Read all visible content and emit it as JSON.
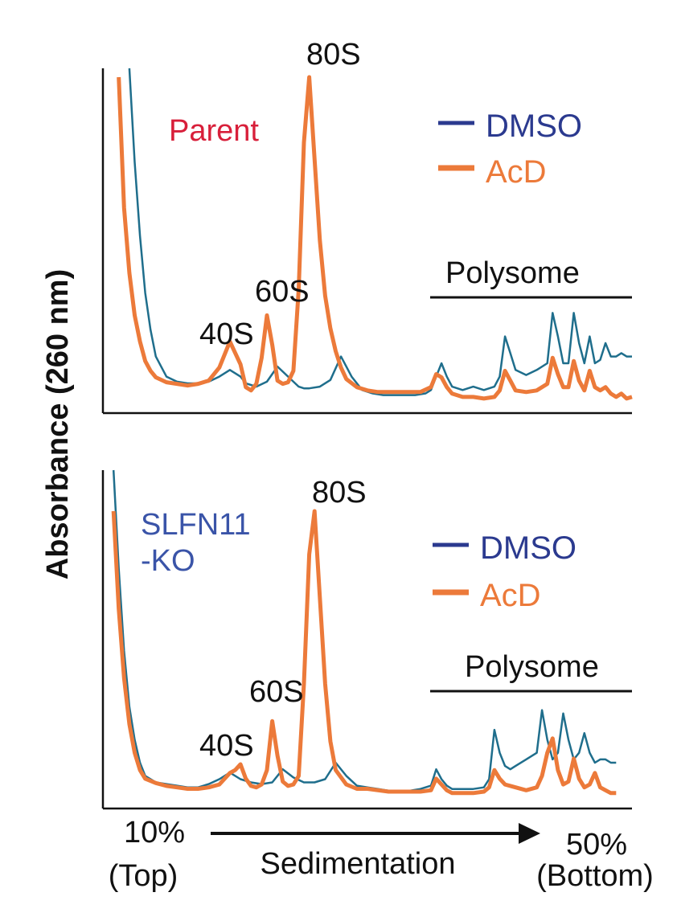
{
  "colors": {
    "dmso": "#1f6e8c",
    "dmso_legend": "#2b3a8f",
    "acd": "#ec7a3a",
    "parent_label": "#d81f3a",
    "ko_label": "#3a54a8",
    "axis": "#111111"
  },
  "ylabel": "Absorbance (260 nm)",
  "xaxis": {
    "left_line1": "10%",
    "left_line2": "(Top)",
    "center": "Sedimentation",
    "right_line1": "50%",
    "right_line2": "(Bottom)"
  },
  "chart_data": [
    {
      "type": "line",
      "panel_label": "Parent",
      "legend": {
        "placement": "top-right",
        "entries": [
          "DMSO",
          "AcD"
        ]
      },
      "peak_labels": [
        "40S",
        "60S",
        "80S"
      ],
      "bracket_label": "Polysome",
      "xlim": [
        0,
        1
      ],
      "ylim": [
        0,
        1
      ],
      "grid": false,
      "series": [
        {
          "name": "DMSO",
          "color": "#1f6e8c",
          "x": [
            0.05,
            0.06,
            0.07,
            0.08,
            0.09,
            0.1,
            0.12,
            0.14,
            0.16,
            0.18,
            0.2,
            0.22,
            0.24,
            0.26,
            0.27,
            0.29,
            0.31,
            0.33,
            0.35,
            0.37,
            0.38,
            0.39,
            0.41,
            0.43,
            0.45,
            0.47,
            0.49,
            0.51,
            0.53,
            0.55,
            0.57,
            0.59,
            0.61,
            0.62,
            0.63,
            0.64,
            0.65,
            0.66,
            0.68,
            0.7,
            0.72,
            0.74,
            0.75,
            0.76,
            0.77,
            0.78,
            0.8,
            0.82,
            0.84,
            0.85,
            0.86,
            0.87,
            0.88,
            0.89,
            0.9,
            0.91,
            0.92,
            0.93,
            0.94,
            0.95,
            0.96,
            0.97,
            0.98,
            0.99,
            1.0
          ],
          "y": [
            1.0,
            0.72,
            0.5,
            0.33,
            0.22,
            0.14,
            0.08,
            0.065,
            0.06,
            0.06,
            0.065,
            0.08,
            0.1,
            0.08,
            0.06,
            0.05,
            0.065,
            0.11,
            0.08,
            0.05,
            0.045,
            0.045,
            0.05,
            0.07,
            0.14,
            0.08,
            0.04,
            0.03,
            0.025,
            0.025,
            0.025,
            0.025,
            0.03,
            0.04,
            0.08,
            0.12,
            0.08,
            0.05,
            0.04,
            0.05,
            0.04,
            0.05,
            0.08,
            0.2,
            0.15,
            0.1,
            0.085,
            0.1,
            0.12,
            0.27,
            0.2,
            0.12,
            0.12,
            0.27,
            0.18,
            0.12,
            0.2,
            0.12,
            0.13,
            0.18,
            0.14,
            0.14,
            0.15,
            0.14,
            0.14
          ]
        },
        {
          "name": "AcD",
          "color": "#ec7a3a",
          "x": [
            0.03,
            0.04,
            0.05,
            0.06,
            0.07,
            0.08,
            0.09,
            0.1,
            0.12,
            0.14,
            0.16,
            0.18,
            0.2,
            0.22,
            0.24,
            0.26,
            0.27,
            0.28,
            0.29,
            0.3,
            0.31,
            0.32,
            0.33,
            0.34,
            0.35,
            0.36,
            0.37,
            0.38,
            0.39,
            0.4,
            0.41,
            0.42,
            0.43,
            0.44,
            0.45,
            0.46,
            0.48,
            0.5,
            0.52,
            0.54,
            0.56,
            0.58,
            0.6,
            0.62,
            0.63,
            0.64,
            0.65,
            0.66,
            0.68,
            0.7,
            0.72,
            0.74,
            0.75,
            0.76,
            0.77,
            0.78,
            0.8,
            0.82,
            0.84,
            0.85,
            0.86,
            0.87,
            0.88,
            0.89,
            0.9,
            0.91,
            0.92,
            0.93,
            0.94,
            0.95,
            0.96,
            0.97,
            0.98,
            0.99,
            1.0
          ],
          "y": [
            1.0,
            0.6,
            0.4,
            0.27,
            0.19,
            0.13,
            0.1,
            0.08,
            0.065,
            0.06,
            0.055,
            0.06,
            0.07,
            0.11,
            0.19,
            0.12,
            0.05,
            0.04,
            0.06,
            0.14,
            0.27,
            0.18,
            0.07,
            0.06,
            0.065,
            0.1,
            0.35,
            0.8,
            1.0,
            0.75,
            0.5,
            0.33,
            0.23,
            0.16,
            0.11,
            0.075,
            0.05,
            0.04,
            0.035,
            0.035,
            0.035,
            0.035,
            0.035,
            0.05,
            0.09,
            0.08,
            0.05,
            0.03,
            0.02,
            0.02,
            0.015,
            0.02,
            0.04,
            0.1,
            0.07,
            0.04,
            0.035,
            0.04,
            0.06,
            0.14,
            0.09,
            0.05,
            0.05,
            0.13,
            0.07,
            0.04,
            0.1,
            0.05,
            0.04,
            0.05,
            0.03,
            0.02,
            0.03,
            0.015,
            0.02
          ]
        }
      ]
    },
    {
      "type": "line",
      "panel_label": "SLFN11\n-KO",
      "legend": {
        "placement": "right",
        "entries": [
          "DMSO",
          "AcD"
        ]
      },
      "peak_labels": [
        "40S",
        "60S",
        "80S"
      ],
      "bracket_label": "Polysome",
      "xlim": [
        0,
        1
      ],
      "ylim": [
        0,
        1
      ],
      "grid": false,
      "series": [
        {
          "name": "DMSO",
          "color": "#1f6e8c",
          "x": [
            0.02,
            0.03,
            0.04,
            0.05,
            0.06,
            0.07,
            0.08,
            0.1,
            0.12,
            0.14,
            0.16,
            0.18,
            0.2,
            0.22,
            0.24,
            0.26,
            0.28,
            0.3,
            0.32,
            0.34,
            0.36,
            0.38,
            0.4,
            0.42,
            0.44,
            0.46,
            0.48,
            0.5,
            0.52,
            0.54,
            0.56,
            0.58,
            0.6,
            0.62,
            0.63,
            0.64,
            0.65,
            0.66,
            0.68,
            0.7,
            0.72,
            0.73,
            0.74,
            0.75,
            0.76,
            0.77,
            0.78,
            0.8,
            0.82,
            0.83,
            0.84,
            0.85,
            0.86,
            0.87,
            0.88,
            0.89,
            0.9,
            0.91,
            0.92,
            0.93,
            0.94,
            0.95,
            0.96,
            0.97
          ],
          "y": [
            1.0,
            0.7,
            0.45,
            0.28,
            0.18,
            0.11,
            0.07,
            0.05,
            0.045,
            0.04,
            0.035,
            0.035,
            0.045,
            0.06,
            0.08,
            0.06,
            0.05,
            0.045,
            0.05,
            0.09,
            0.065,
            0.05,
            0.05,
            0.06,
            0.11,
            0.07,
            0.04,
            0.035,
            0.03,
            0.025,
            0.025,
            0.025,
            0.03,
            0.04,
            0.09,
            0.06,
            0.04,
            0.03,
            0.03,
            0.03,
            0.035,
            0.06,
            0.21,
            0.14,
            0.1,
            0.09,
            0.1,
            0.12,
            0.14,
            0.27,
            0.18,
            0.12,
            0.14,
            0.26,
            0.18,
            0.12,
            0.14,
            0.2,
            0.14,
            0.11,
            0.12,
            0.12,
            0.11,
            0.11
          ]
        },
        {
          "name": "AcD",
          "color": "#ec7a3a",
          "x": [
            0.02,
            0.03,
            0.04,
            0.05,
            0.06,
            0.07,
            0.08,
            0.1,
            0.12,
            0.14,
            0.16,
            0.18,
            0.2,
            0.22,
            0.24,
            0.25,
            0.26,
            0.27,
            0.28,
            0.29,
            0.3,
            0.31,
            0.32,
            0.33,
            0.34,
            0.35,
            0.36,
            0.37,
            0.38,
            0.39,
            0.4,
            0.41,
            0.42,
            0.43,
            0.44,
            0.46,
            0.48,
            0.5,
            0.52,
            0.54,
            0.56,
            0.58,
            0.6,
            0.62,
            0.63,
            0.64,
            0.65,
            0.66,
            0.68,
            0.7,
            0.72,
            0.73,
            0.74,
            0.75,
            0.76,
            0.78,
            0.8,
            0.82,
            0.83,
            0.84,
            0.85,
            0.86,
            0.87,
            0.88,
            0.89,
            0.9,
            0.91,
            0.92,
            0.93,
            0.94,
            0.95,
            0.96,
            0.97
          ],
          "y": [
            1.0,
            0.66,
            0.42,
            0.26,
            0.16,
            0.1,
            0.07,
            0.055,
            0.045,
            0.04,
            0.035,
            0.035,
            0.04,
            0.05,
            0.09,
            0.1,
            0.12,
            0.07,
            0.045,
            0.04,
            0.05,
            0.1,
            0.27,
            0.15,
            0.06,
            0.045,
            0.05,
            0.08,
            0.4,
            0.85,
            1.0,
            0.7,
            0.4,
            0.2,
            0.1,
            0.05,
            0.035,
            0.035,
            0.03,
            0.025,
            0.025,
            0.025,
            0.025,
            0.03,
            0.07,
            0.05,
            0.03,
            0.02,
            0.02,
            0.02,
            0.025,
            0.04,
            0.1,
            0.07,
            0.05,
            0.04,
            0.03,
            0.04,
            0.08,
            0.16,
            0.21,
            0.1,
            0.05,
            0.06,
            0.14,
            0.07,
            0.04,
            0.05,
            0.09,
            0.04,
            0.03,
            0.02,
            0.02
          ]
        }
      ]
    }
  ]
}
